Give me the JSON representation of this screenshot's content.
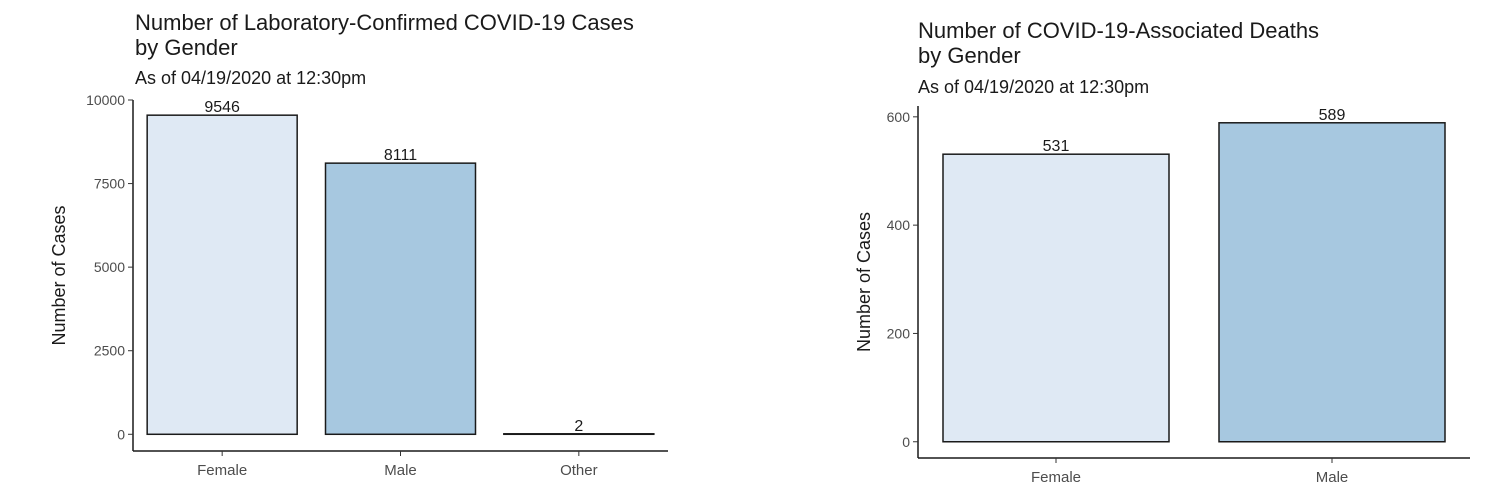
{
  "chart_data": [
    {
      "type": "bar",
      "title_line1": "Number of Laboratory-Confirmed COVID-19 Cases",
      "title_line2": "by Gender",
      "subtitle": "As of 04/19/2020 at 12:30pm",
      "xlabel": "",
      "ylabel": "Number of Cases",
      "categories": [
        "Female",
        "Male",
        "Other"
      ],
      "values": [
        9546,
        8111,
        2
      ],
      "value_labels": [
        "9546",
        "8111",
        "2"
      ],
      "colors": [
        "#dfe9f4",
        "#a7c8e0",
        "#dfe9f4"
      ],
      "yticks": [
        0,
        2500,
        5000,
        7500,
        10000
      ],
      "ylim": [
        -500,
        10000
      ],
      "grid": false
    },
    {
      "type": "bar",
      "title_line1": "Number of COVID-19-Associated Deaths",
      "title_line2": "by Gender",
      "subtitle": "As of 04/19/2020 at 12:30pm",
      "xlabel": "",
      "ylabel": "Number of Cases",
      "categories": [
        "Female",
        "Male"
      ],
      "values": [
        531,
        589
      ],
      "value_labels": [
        "531",
        "589"
      ],
      "colors": [
        "#dfe9f4",
        "#a7c8e0"
      ],
      "yticks": [
        0,
        200,
        400,
        600
      ],
      "ylim": [
        -30,
        620
      ],
      "grid": false
    }
  ]
}
